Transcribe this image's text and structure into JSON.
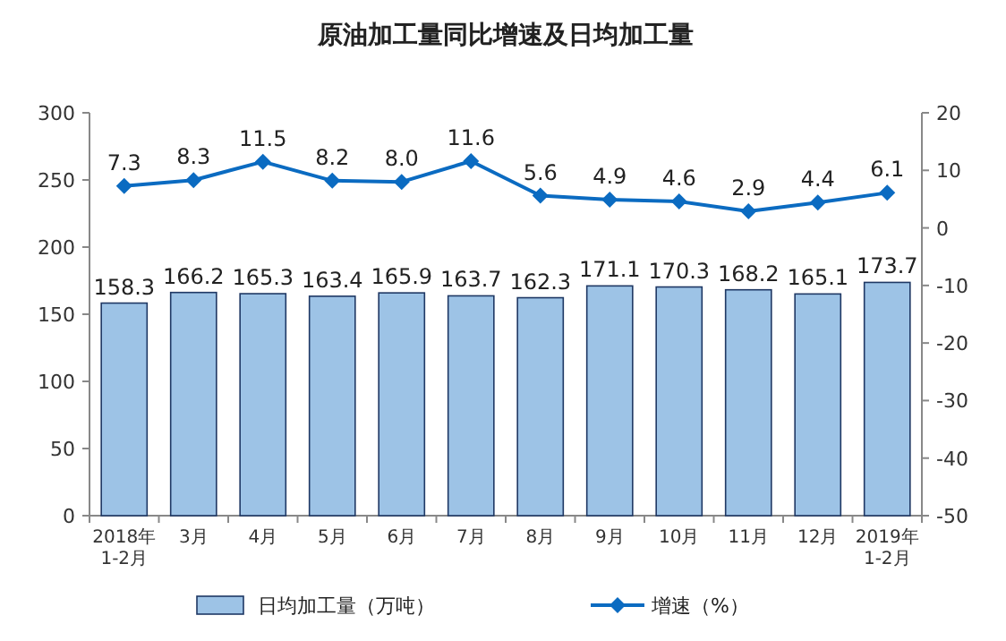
{
  "chart_data": {
    "type": "bar",
    "title": "原油加工量同比增速及日均加工量",
    "categories": [
      "2018年 1-2月",
      "3月",
      "4月",
      "5月",
      "6月",
      "7月",
      "8月",
      "9月",
      "10月",
      "11月",
      "12月",
      "2019年 1-2月"
    ],
    "series": [
      {
        "name": "日均加工量（万吨）",
        "color": "#9dc3e6",
        "values": [
          158.3,
          166.2,
          165.3,
          163.4,
          165.9,
          163.7,
          162.3,
          171.1,
          170.3,
          168.2,
          165.1,
          173.7
        ]
      },
      {
        "name": "增速（%）",
        "type": "line",
        "axis": "y2",
        "color": "#0b6bc1",
        "marker": "diamond",
        "values": [
          7.3,
          8.3,
          11.5,
          8.2,
          8.0,
          11.6,
          5.6,
          4.9,
          4.6,
          2.9,
          4.4,
          6.1
        ],
        "value_labels": [
          "7.3",
          "8.3",
          "11.5",
          "8.2",
          "8.0",
          "11.6",
          "5.6",
          "4.9",
          "4.6",
          "2.9",
          "4.4",
          "6.1"
        ]
      }
    ],
    "ylim": [
      0,
      300
    ],
    "yticks": [
      0,
      50,
      100,
      150,
      200,
      250,
      300
    ],
    "y2lim": [
      -50,
      20
    ],
    "y2ticks": [
      -50,
      -40,
      -30,
      -20,
      -10,
      0,
      10,
      20
    ],
    "data_labels": true,
    "legend": "bottom",
    "grid": false
  }
}
